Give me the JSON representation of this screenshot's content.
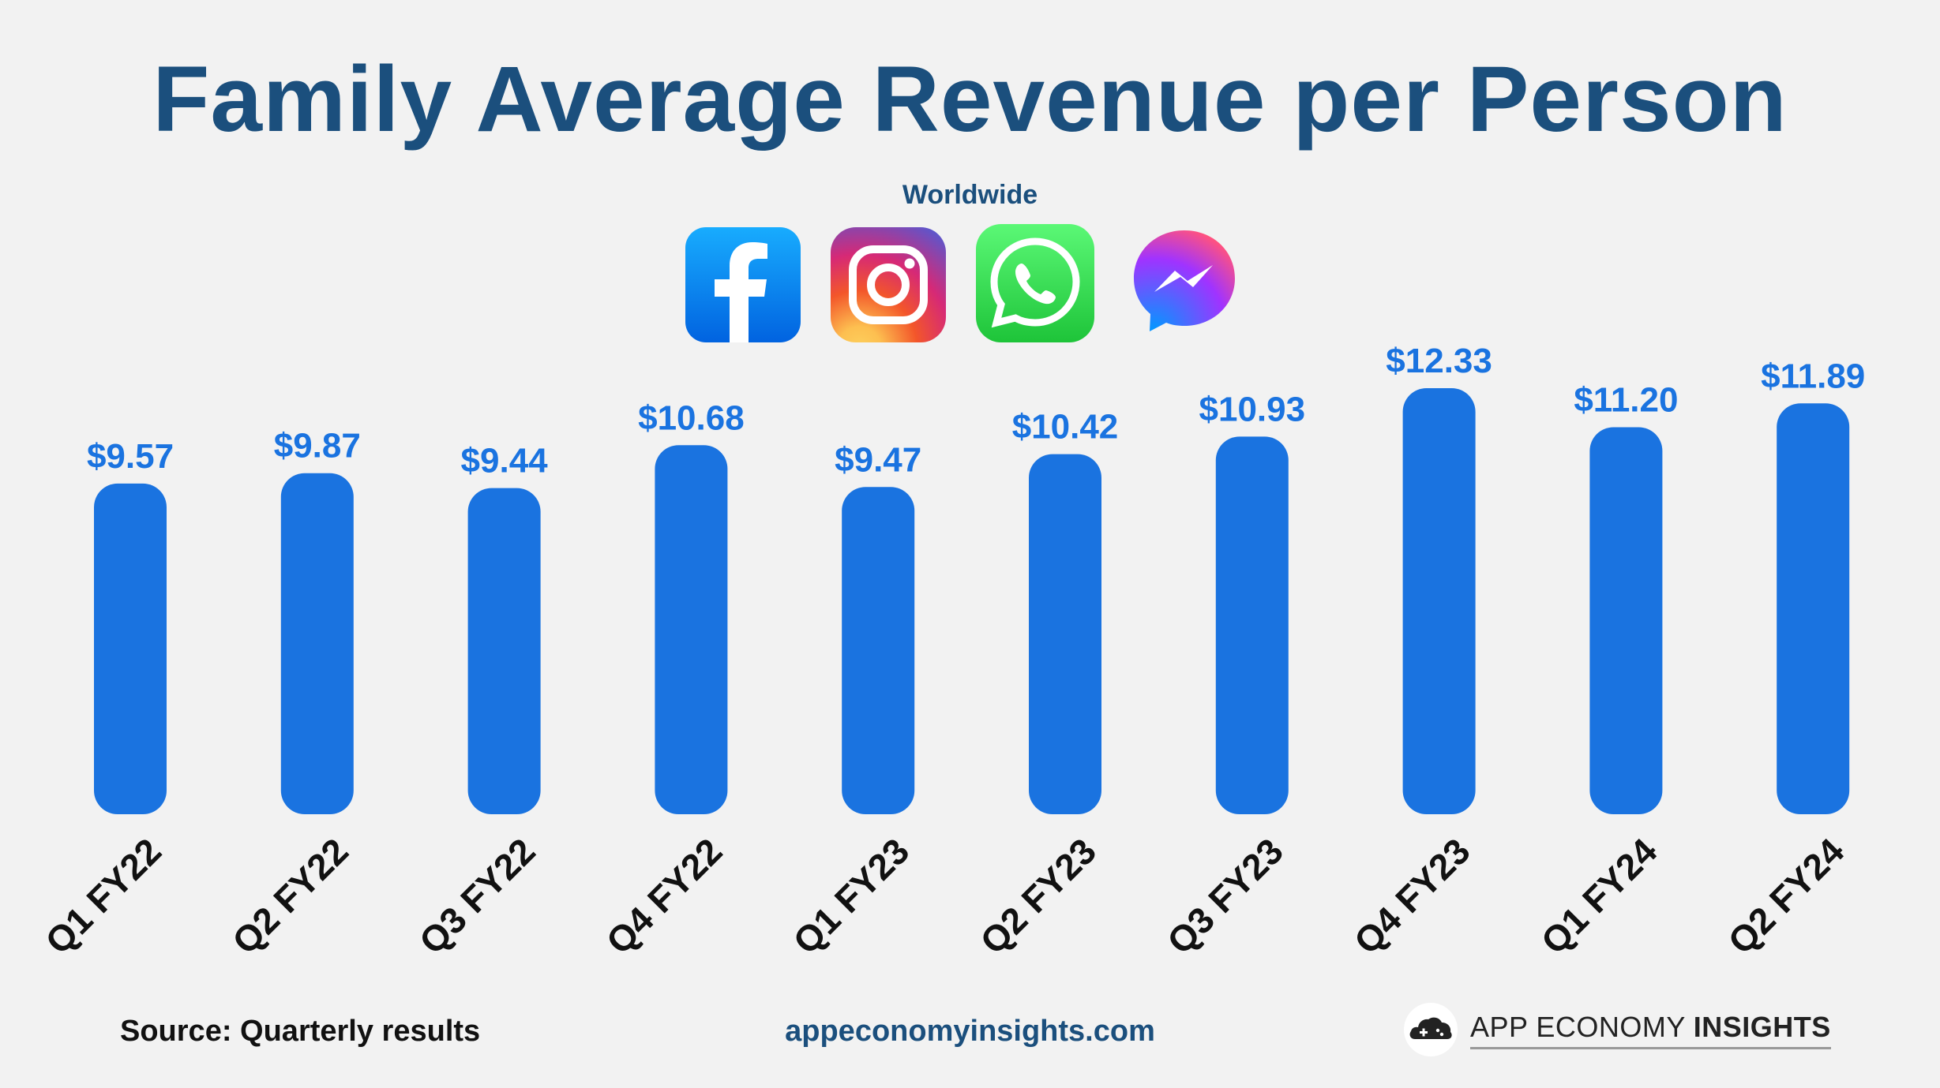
{
  "header": {
    "title": "Family Average Revenue per Person",
    "subtitle": "Worldwide"
  },
  "apps": [
    {
      "name": "Facebook",
      "icon": "facebook-icon",
      "color": "#1877f2"
    },
    {
      "name": "Instagram",
      "icon": "instagram-icon",
      "color": "#d62976"
    },
    {
      "name": "WhatsApp",
      "icon": "whatsapp-icon",
      "color": "#25d366"
    },
    {
      "name": "Messenger",
      "icon": "messenger-icon",
      "color": "#a033ff"
    }
  ],
  "chart_data": {
    "type": "bar",
    "categories": [
      "Q1 FY22",
      "Q2 FY22",
      "Q3 FY22",
      "Q4 FY22",
      "Q1 FY23",
      "Q2 FY23",
      "Q3 FY23",
      "Q4 FY23",
      "Q1 FY24",
      "Q2 FY24"
    ],
    "values": [
      9.57,
      9.87,
      9.44,
      10.68,
      9.47,
      10.42,
      10.93,
      12.33,
      11.2,
      11.89
    ],
    "value_labels": [
      "$9.57",
      "$9.87",
      "$9.44",
      "$10.68",
      "$9.47",
      "$10.42",
      "$10.93",
      "$12.33",
      "$11.20",
      "$11.89"
    ],
    "title": "Family Average Revenue per Person",
    "subtitle": "Worldwide",
    "xlabel": "",
    "ylabel": "",
    "ylim": [
      0,
      12.33
    ],
    "grid": false,
    "legend": "none",
    "bar_color": "#1a73e0"
  },
  "footer": {
    "source": "Source: Quarterly results",
    "website": "appeconomyinsights.com",
    "brand_regular": "APP ECONOMY ",
    "brand_bold": "INSIGHTS"
  }
}
